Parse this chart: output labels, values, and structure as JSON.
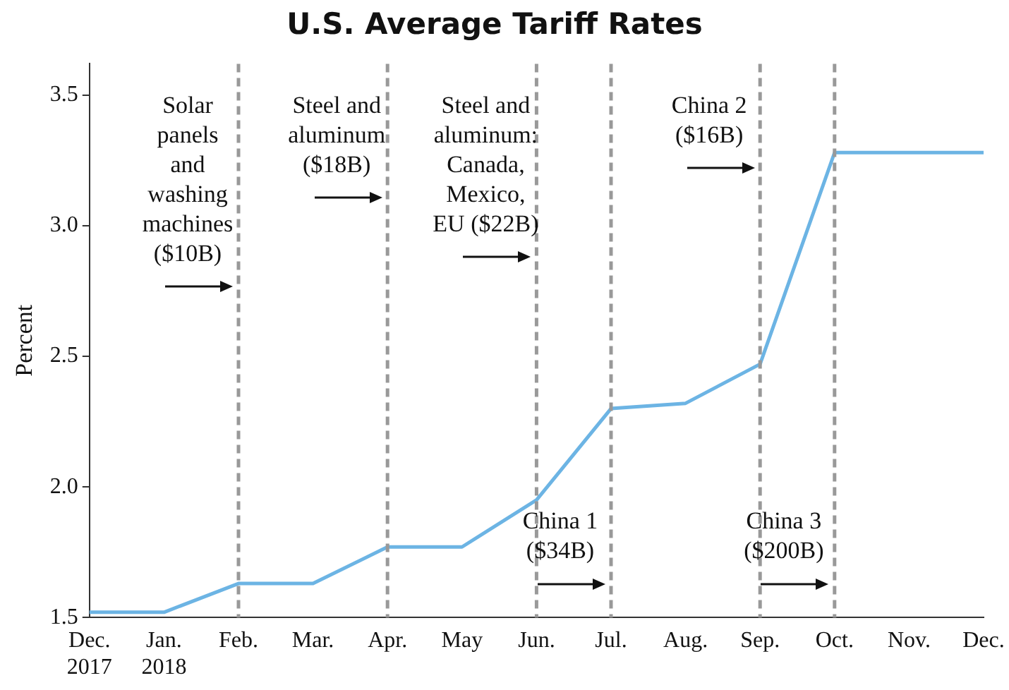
{
  "chart_data": {
    "type": "line",
    "title": "U.S. Average Tariff Rates",
    "ylabel": "Percent",
    "categories": [
      "Dec. 2017",
      "Jan. 2018",
      "Feb.",
      "Mar.",
      "Apr.",
      "May",
      "Jun.",
      "Jul.",
      "Aug.",
      "Sep.",
      "Oct.",
      "Nov.",
      "Dec."
    ],
    "series": [
      {
        "color": "#6cb4e4",
        "values": [
          1.52,
          1.52,
          1.63,
          1.63,
          1.77,
          1.77,
          1.95,
          2.3,
          2.32,
          2.47,
          3.28,
          3.28,
          3.28
        ]
      }
    ],
    "ylim": [
      1.5,
      3.62
    ],
    "yticks": [
      1.5,
      {
        "value": 2,
        "label": "2.0"
      },
      2.5,
      {
        "value": 3,
        "label": "3.0"
      },
      3.5
    ],
    "ref_lines": [
      {
        "axis": "x",
        "value": "Feb.",
        "label": "Solar\npanels\nand\nwashing\nmachines\n($10B)",
        "color": "#999999",
        "line_style": "dashed"
      },
      {
        "axis": "x",
        "value": "Apr.",
        "label": "Steel and\naluminum\n($18B)",
        "color": "#999999",
        "line_style": "dashed"
      },
      {
        "axis": "x",
        "value": "Jun.",
        "label": "Steel and\naluminum:\nCanada,\nMexico,\nEU ($22B)",
        "color": "#999999",
        "line_style": "dashed"
      },
      {
        "axis": "x",
        "value": "Jul.",
        "label": "China 1\n($34B)",
        "color": "#999999",
        "line_style": "dashed"
      },
      {
        "axis": "x",
        "value": "Sep.",
        "label": "China 2\n($16B)",
        "color": "#999999",
        "line_style": "dashed"
      },
      {
        "axis": "x",
        "value": "Oct.",
        "label": "China 3\n($200B)",
        "color": "#999999",
        "line_style": "dashed"
      }
    ],
    "grid": false,
    "legend": false,
    "marker": "none",
    "line_style": "solid"
  }
}
